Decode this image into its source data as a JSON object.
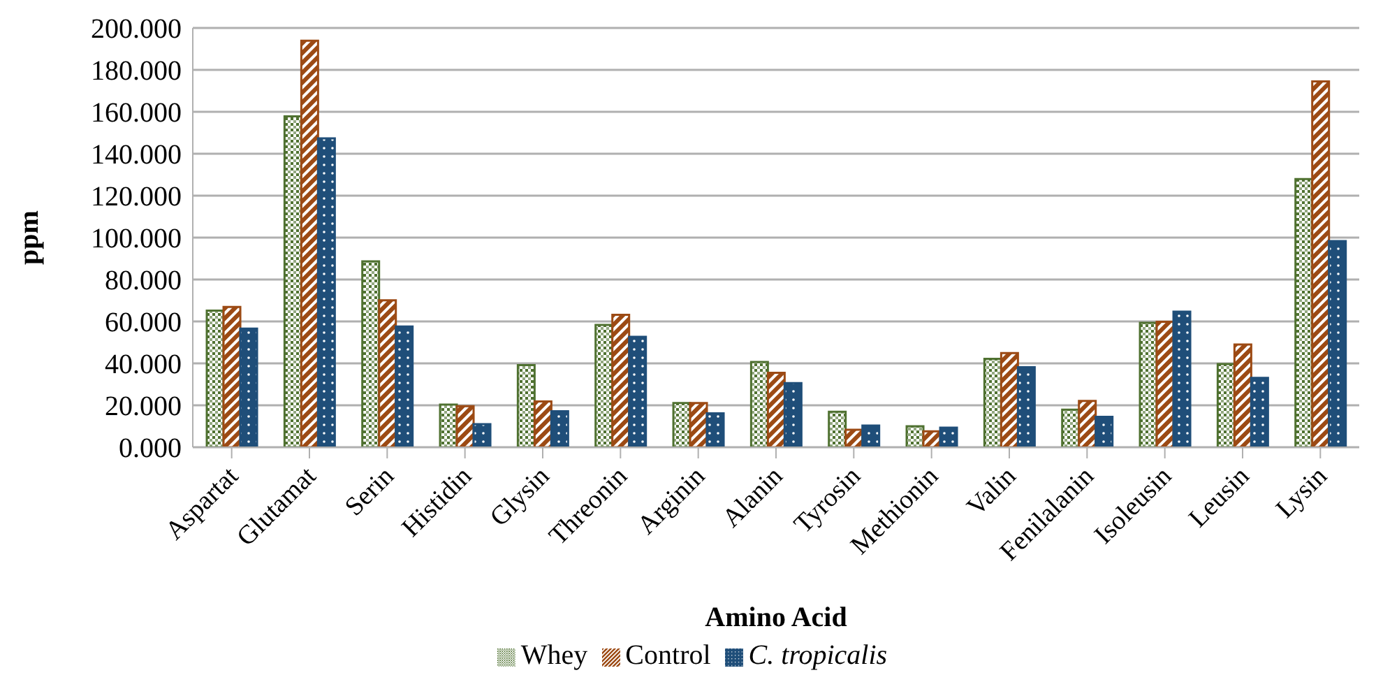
{
  "chart_data": {
    "type": "bar",
    "xlabel": "Amino Acid",
    "ylabel": "ppm",
    "categories": [
      "Aspartat",
      "Glutamat",
      "Serin",
      "Histidin",
      "Glysin",
      "Threonin",
      "Arginin",
      "Alanin",
      "Tyrosin",
      "Methionin",
      "Valin",
      "Fenilalanin",
      "Isoleusin",
      "Leusin",
      "Lysin"
    ],
    "series": [
      {
        "name": "Whey",
        "color": "#4f7130",
        "values": [
          65.2,
          157.8,
          88.7,
          20.3,
          39.2,
          58.3,
          21.1,
          40.7,
          16.9,
          10.0,
          42.2,
          17.9,
          59.3,
          39.7,
          127.9
        ]
      },
      {
        "name": "Control",
        "color": "#9c4a14",
        "values": [
          66.9,
          193.9,
          70.1,
          19.6,
          21.8,
          63.2,
          21.1,
          35.5,
          8.3,
          7.6,
          44.9,
          22.1,
          59.8,
          49.0,
          174.5
        ]
      },
      {
        "name": "C. tropicalis",
        "color": "#1f4e79",
        "values": [
          56.6,
          147.3,
          57.6,
          11.0,
          17.2,
          52.7,
          16.2,
          30.6,
          10.3,
          9.3,
          38.2,
          14.5,
          64.7,
          33.1,
          98.3
        ]
      }
    ],
    "ylim": [
      0,
      200
    ],
    "yticks": [
      {
        "value": 0,
        "label": "0.000"
      },
      {
        "value": 20,
        "label": "20.000"
      },
      {
        "value": 40,
        "label": "40.000"
      },
      {
        "value": 60,
        "label": "60.000"
      },
      {
        "value": 80,
        "label": "80.000"
      },
      {
        "value": 100,
        "label": "100.000"
      },
      {
        "value": 120,
        "label": "120.000"
      },
      {
        "value": 140,
        "label": "140.000"
      },
      {
        "value": 160,
        "label": "160.000"
      },
      {
        "value": 180,
        "label": "180.000"
      },
      {
        "value": 200,
        "label": "200.000"
      }
    ],
    "grid": "y",
    "legend": "bottom"
  }
}
